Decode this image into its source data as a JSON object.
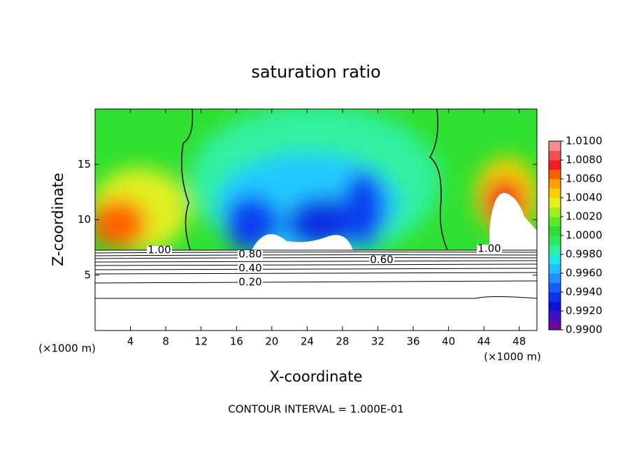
{
  "chart_data": {
    "type": "contour",
    "title": "saturation ratio",
    "xlabel": "X-coordinate",
    "ylabel": "Z-coordinate",
    "x_unit": "(×1000 m)",
    "xlim": [
      0,
      50
    ],
    "ylim": [
      0,
      20
    ],
    "xticks": [
      4,
      8,
      12,
      16,
      20,
      24,
      28,
      32,
      36,
      40,
      44,
      48
    ],
    "yticks": [
      5,
      10,
      15
    ],
    "colorbar": {
      "lim": [
        0.99,
        1.01
      ],
      "ticks": [
        {
          "value": 0.99,
          "label": "0.9900"
        },
        {
          "value": 0.992,
          "label": "0.9920"
        },
        {
          "value": 0.994,
          "label": "0.9940"
        },
        {
          "value": 0.996,
          "label": "0.9960"
        },
        {
          "value": 0.998,
          "label": "0.9980"
        },
        {
          "value": 1.0,
          "label": "1.0000"
        },
        {
          "value": 1.002,
          "label": "1.0020"
        },
        {
          "value": 1.004,
          "label": "1.0040"
        },
        {
          "value": 1.006,
          "label": "1.0060"
        },
        {
          "value": 1.008,
          "label": "1.0080"
        },
        {
          "value": 1.01,
          "label": "1.0100"
        }
      ],
      "colors": [
        "#6a0a9a",
        "#4010c0",
        "#1010d8",
        "#1030f0",
        "#1060ff",
        "#2090ff",
        "#20c0ff",
        "#20e8e0",
        "#30f0a0",
        "#30e860",
        "#30e030",
        "#60e820",
        "#a0f020",
        "#e0f020",
        "#f8d000",
        "#ffa000",
        "#ff6000",
        "#f02020",
        "#f05050",
        "#f09090"
      ]
    },
    "contour_labels": [
      {
        "value": 1,
        "label": "1.00"
      },
      {
        "value": 1,
        "label": "1.00"
      },
      {
        "value": 0.8,
        "label": "0.80"
      },
      {
        "value": 0.6,
        "label": "0.60"
      },
      {
        "value": 0.4,
        "label": "0.40"
      },
      {
        "value": 0.2,
        "label": "0.20"
      }
    ],
    "footer": "CONTOUR INTERVAL = 1.000E-01"
  }
}
